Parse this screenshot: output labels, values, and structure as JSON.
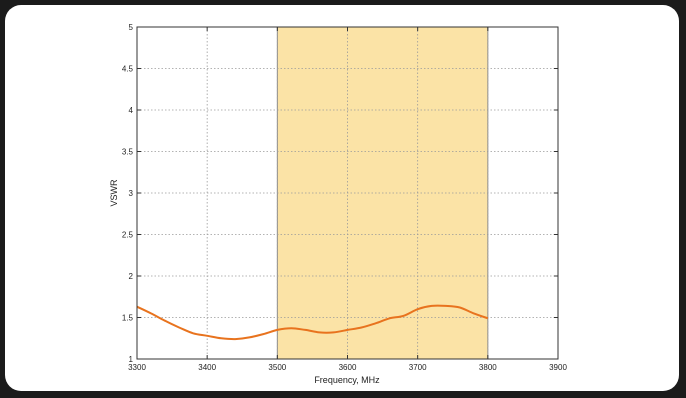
{
  "chart_data": {
    "type": "line",
    "xlabel": "Frequency, MHz",
    "ylabel": "VSWR",
    "xlim": [
      3300,
      3900
    ],
    "ylim": [
      1,
      5
    ],
    "x_ticks": [
      "3300",
      "3400",
      "3500",
      "3600",
      "3700",
      "3800",
      "3900"
    ],
    "y_ticks": [
      "1",
      "1.5",
      "2",
      "2.5",
      "3",
      "3.5",
      "4",
      "4.5",
      "5"
    ],
    "grid": true,
    "highlight_band": {
      "x_start": 3500,
      "x_end": 3800,
      "color": "#fbe3a6"
    },
    "series": [
      {
        "color": "#e8731e",
        "x": [
          3300,
          3320,
          3340,
          3360,
          3380,
          3400,
          3420,
          3440,
          3460,
          3480,
          3500,
          3520,
          3540,
          3560,
          3580,
          3600,
          3620,
          3640,
          3660,
          3680,
          3700,
          3720,
          3740,
          3760,
          3780,
          3800
        ],
        "y": [
          1.63,
          1.55,
          1.46,
          1.38,
          1.31,
          1.28,
          1.25,
          1.24,
          1.26,
          1.3,
          1.35,
          1.37,
          1.35,
          1.32,
          1.32,
          1.35,
          1.38,
          1.43,
          1.49,
          1.52,
          1.6,
          1.64,
          1.64,
          1.62,
          1.55,
          1.49
        ]
      }
    ]
  }
}
